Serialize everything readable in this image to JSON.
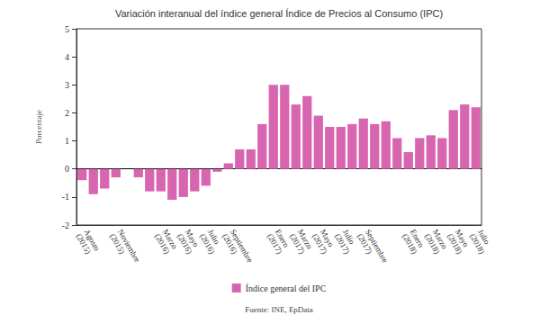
{
  "chart_data": {
    "type": "bar",
    "title": "Variación interanual del índice general Índice de Precios al Consumo (IPC)",
    "ylabel": "Porcentaje",
    "annotations": [
      "Fuente: INE, EpData"
    ],
    "categories": [
      "Agosto (2015)",
      null,
      null,
      "Noviembre (2015)",
      null,
      null,
      null,
      "Marzo (2016)",
      null,
      "Mayo (2016)",
      null,
      "Julio (2016)",
      null,
      "Septiembre (2016)",
      null,
      null,
      null,
      "Enero (2017)",
      null,
      "Marzo (2017)",
      null,
      "Mayo (2017)",
      null,
      "Julio (2017)",
      null,
      "Septiembre (2017)",
      null,
      null,
      null,
      "Enero (2018)",
      null,
      "Marzo (2018)",
      null,
      "Mayo (2018)",
      null,
      "Julio (2018)"
    ],
    "series": [
      {
        "name": "Índice general del IPC",
        "color": "#d865b0",
        "values": [
          -0.4,
          -0.9,
          -0.7,
          -0.3,
          0.0,
          -0.3,
          -0.8,
          -0.8,
          -1.1,
          -1.0,
          -0.8,
          -0.6,
          -0.1,
          0.2,
          0.7,
          0.7,
          1.6,
          3.0,
          3.0,
          2.3,
          2.6,
          1.9,
          1.5,
          1.5,
          1.6,
          1.8,
          1.6,
          1.7,
          1.1,
          0.6,
          1.1,
          1.2,
          1.1,
          2.1,
          2.3,
          2.2
        ]
      }
    ],
    "ylim": [
      -2,
      5
    ],
    "yticks": [
      -2,
      -1,
      0,
      1,
      2,
      3,
      4,
      5
    ],
    "grid": false,
    "legend": "bottom"
  }
}
